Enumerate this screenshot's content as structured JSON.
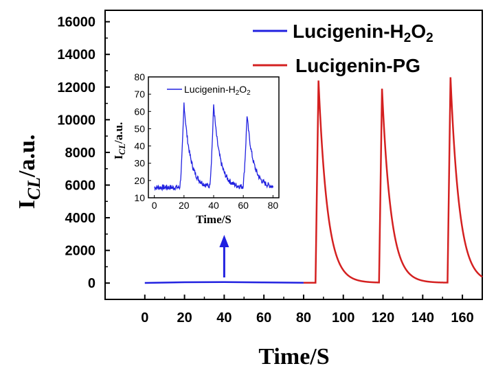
{
  "chart_data": [
    {
      "type": "line",
      "ylabel": {
        "main": "I",
        "sub": "CL",
        "rest": "/a.u."
      },
      "xlabel": "Time/S",
      "xlim": [
        -20,
        170
      ],
      "ylim": [
        -1000,
        16700
      ],
      "xticks": [
        "0",
        "20",
        "40",
        "60",
        "80",
        "100",
        "120",
        "140",
        "160"
      ],
      "yticks": [
        "0",
        "2000",
        "4000",
        "6000",
        "8000",
        "10000",
        "12000",
        "14000",
        "16000"
      ],
      "legend_position": "top-right",
      "series": [
        {
          "name_main": "Lucigenin-H",
          "name_sub": "2",
          "name_mid": "O",
          "name_sub2": "2",
          "color": "#2020e0",
          "points": [
            [
              0,
              10
            ],
            [
              20,
              50
            ],
            [
              40,
              60
            ],
            [
              60,
              40
            ],
            [
              80,
              20
            ]
          ]
        },
        {
          "name_main": "Lucigenin-PG",
          "color": "#d42020",
          "peaks": [
            {
              "start": 86,
              "x": 87.5,
              "y": 12400
            },
            {
              "start": 118,
              "x": 119.5,
              "y": 11900
            },
            {
              "start": 152.5,
              "x": 154,
              "y": 12600
            }
          ],
          "baseline": 20,
          "decay_seconds": 4.5,
          "x_range": [
            80,
            170
          ]
        }
      ],
      "annotation_arrow_x": 40
    },
    {
      "type": "line",
      "ylabel": {
        "main": "I",
        "sub": "CL",
        "rest": "/a.u."
      },
      "xlabel": "Time/S",
      "xlim": [
        -4,
        84
      ],
      "ylim": [
        10,
        80
      ],
      "xticks": [
        "0",
        "20",
        "40",
        "60",
        "80"
      ],
      "yticks": [
        "10",
        "20",
        "30",
        "40",
        "50",
        "60",
        "70",
        "80"
      ],
      "series": [
        {
          "name_main": "Lucigenin-H",
          "name_sub": "2",
          "name_mid": "O",
          "name_sub2": "2",
          "color": "#2020e0",
          "baseline": 16,
          "peaks": [
            {
              "x": 20,
              "y": 65
            },
            {
              "x": 40,
              "y": 64
            },
            {
              "x": 62.5,
              "y": 58
            }
          ],
          "x_range": [
            0,
            80
          ]
        }
      ]
    }
  ]
}
